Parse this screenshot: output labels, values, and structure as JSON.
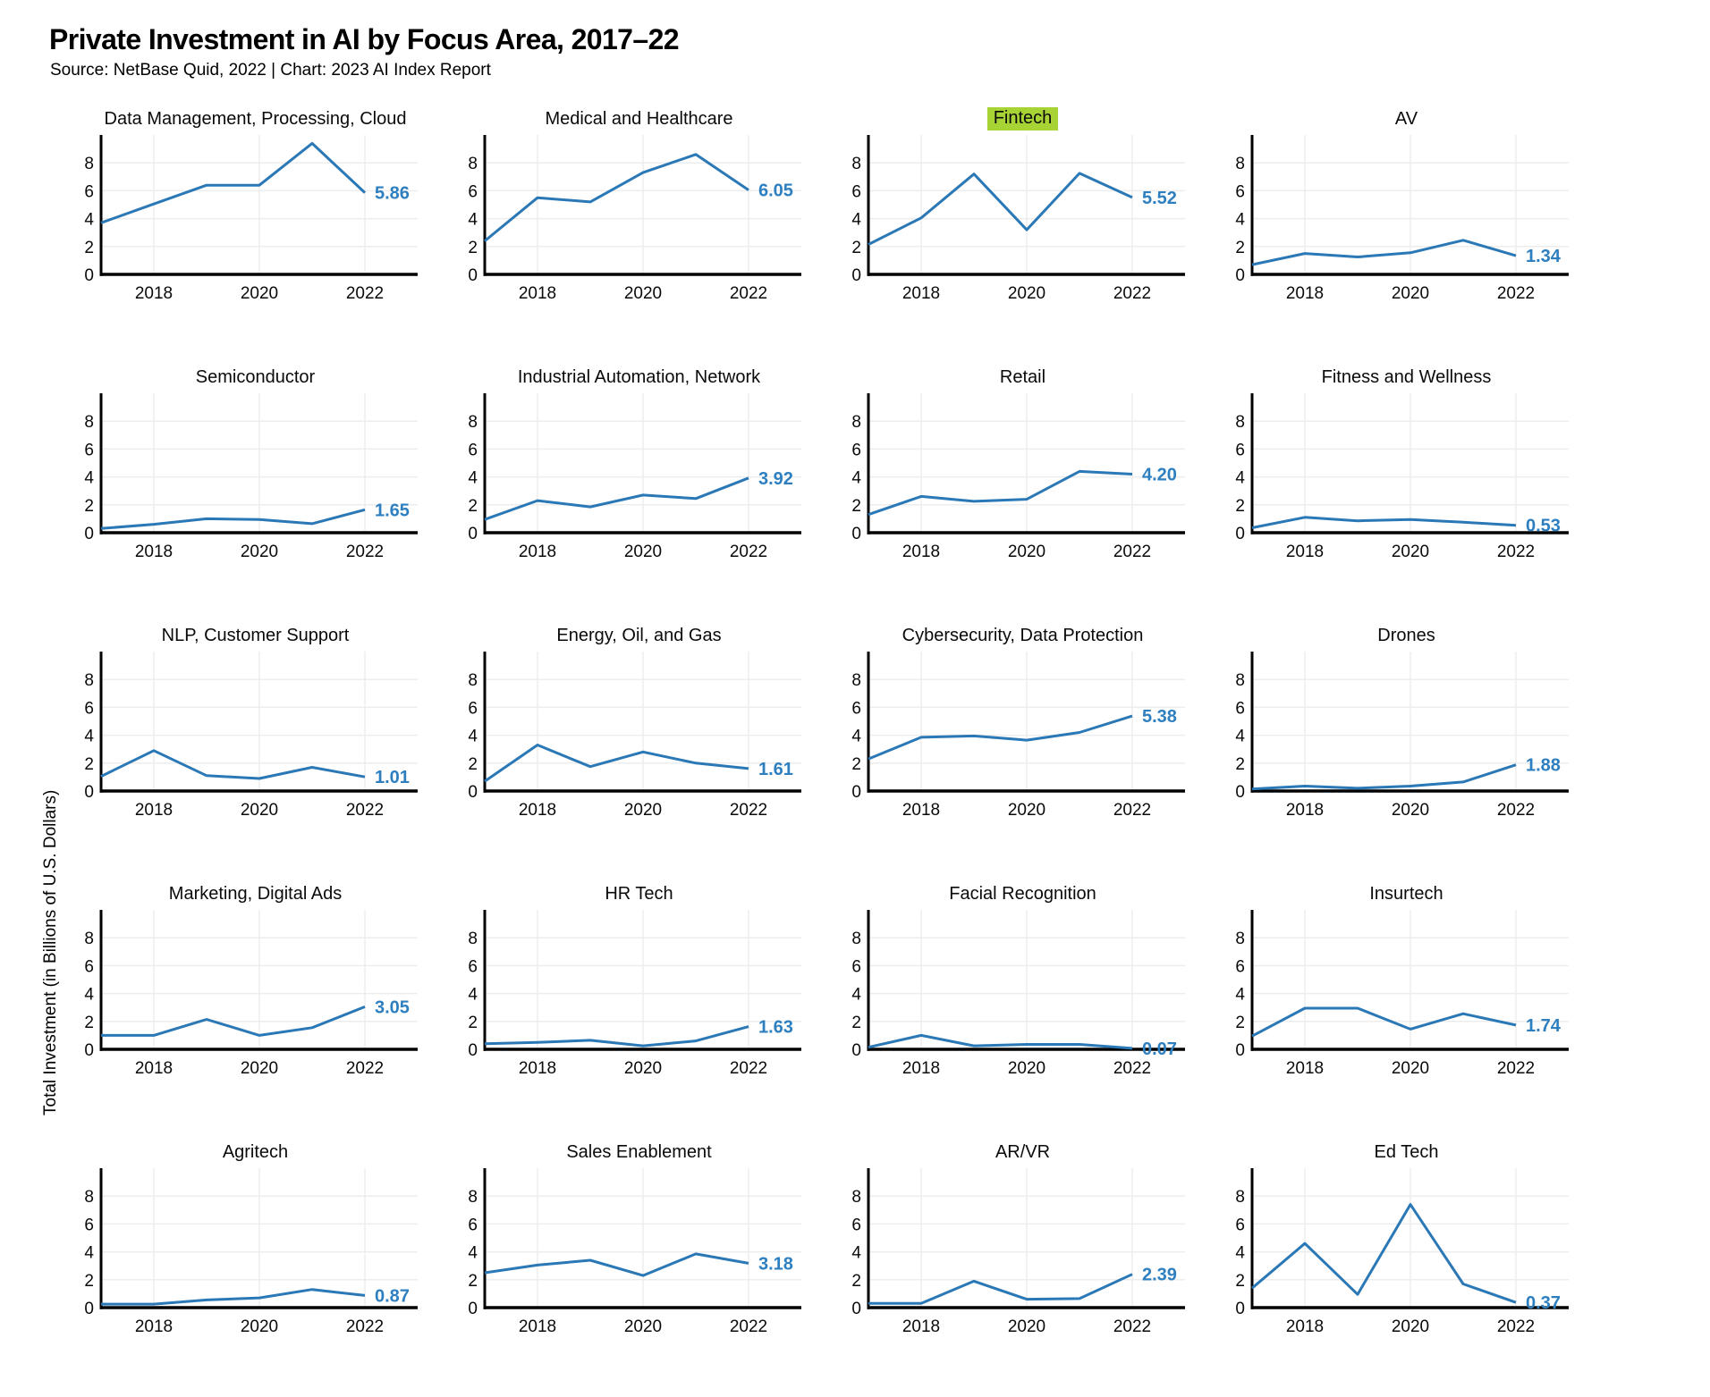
{
  "header": {
    "title": "Private Investment in AI by Focus Area, 2017–22",
    "source": "Source: NetBase Quid, 2022 | Chart: 2023 AI Index Report"
  },
  "chart_data": {
    "type": "line",
    "x": [
      2017,
      2018,
      2019,
      2020,
      2021,
      2022
    ],
    "x_ticks": [
      "2018",
      "2020",
      "2022"
    ],
    "y_ticks": [
      0,
      2,
      4,
      6,
      8
    ],
    "ylim": [
      0,
      10
    ],
    "ylabel": "Total Investment (in Billions of U.S. Dollars)",
    "grid": true,
    "legend": "none",
    "line_color": "#2b78b6",
    "label_color": "#2e7fc0",
    "highlight_color": "#a8d334",
    "gridline_color": "#ededed",
    "axis_color": "#000000",
    "panels": [
      {
        "title": "Data Management, Processing, Cloud",
        "highlight": false,
        "values": [
          3.7,
          5.05,
          6.4,
          6.4,
          9.4,
          5.86
        ],
        "end_label": "5.86"
      },
      {
        "title": "Medical and Healthcare",
        "highlight": false,
        "values": [
          2.4,
          5.5,
          5.2,
          7.3,
          8.6,
          6.05
        ],
        "end_label": "6.05"
      },
      {
        "title": "Fintech",
        "highlight": true,
        "values": [
          2.15,
          4.05,
          7.2,
          3.2,
          7.25,
          5.52
        ],
        "end_label": "5.52"
      },
      {
        "title": "AV",
        "highlight": false,
        "values": [
          0.7,
          1.5,
          1.25,
          1.55,
          2.45,
          1.34
        ],
        "end_label": "1.34"
      },
      {
        "title": "Semiconductor",
        "highlight": false,
        "values": [
          0.3,
          0.6,
          1.0,
          0.95,
          0.65,
          1.65
        ],
        "end_label": "1.65"
      },
      {
        "title": "Industrial Automation, Network",
        "highlight": false,
        "values": [
          0.95,
          2.3,
          1.85,
          2.7,
          2.45,
          3.92
        ],
        "end_label": "3.92"
      },
      {
        "title": "Retail",
        "highlight": false,
        "values": [
          1.3,
          2.6,
          2.25,
          2.4,
          4.4,
          4.2
        ],
        "end_label": "4.20"
      },
      {
        "title": "Fitness and Wellness",
        "highlight": false,
        "values": [
          0.35,
          1.1,
          0.85,
          0.95,
          0.75,
          0.53
        ],
        "end_label": "0.53"
      },
      {
        "title": "NLP, Customer Support",
        "highlight": false,
        "values": [
          1.05,
          2.9,
          1.1,
          0.9,
          1.7,
          1.01
        ],
        "end_label": "1.01"
      },
      {
        "title": "Energy, Oil, and Gas",
        "highlight": false,
        "values": [
          0.7,
          3.3,
          1.75,
          2.8,
          2.0,
          1.61
        ],
        "end_label": "1.61"
      },
      {
        "title": "Cybersecurity, Data Protection",
        "highlight": false,
        "values": [
          2.3,
          3.85,
          3.95,
          3.65,
          4.2,
          5.38
        ],
        "end_label": "5.38"
      },
      {
        "title": "Drones",
        "highlight": false,
        "values": [
          0.15,
          0.35,
          0.2,
          0.35,
          0.65,
          1.88
        ],
        "end_label": "1.88"
      },
      {
        "title": "Marketing, Digital Ads",
        "highlight": false,
        "values": [
          1.0,
          1.0,
          2.15,
          1.0,
          1.55,
          3.05
        ],
        "end_label": "3.05"
      },
      {
        "title": "HR Tech",
        "highlight": false,
        "values": [
          0.4,
          0.5,
          0.65,
          0.25,
          0.6,
          1.63
        ],
        "end_label": "1.63"
      },
      {
        "title": "Facial Recognition",
        "highlight": false,
        "values": [
          0.15,
          1.0,
          0.25,
          0.35,
          0.35,
          0.07
        ],
        "end_label": "0.07"
      },
      {
        "title": "Insurtech",
        "highlight": false,
        "values": [
          0.95,
          2.95,
          2.95,
          1.45,
          2.55,
          1.74
        ],
        "end_label": "1.74"
      },
      {
        "title": "Agritech",
        "highlight": false,
        "values": [
          0.25,
          0.25,
          0.55,
          0.7,
          1.3,
          0.87
        ],
        "end_label": "0.87"
      },
      {
        "title": "Sales Enablement",
        "highlight": false,
        "values": [
          2.5,
          3.05,
          3.4,
          2.3,
          3.85,
          3.18
        ],
        "end_label": "3.18"
      },
      {
        "title": "AR/VR",
        "highlight": false,
        "values": [
          0.3,
          0.3,
          1.9,
          0.6,
          0.65,
          2.39
        ],
        "end_label": "2.39"
      },
      {
        "title": "Ed Tech",
        "highlight": false,
        "values": [
          1.4,
          4.6,
          0.95,
          7.4,
          1.7,
          0.37
        ],
        "end_label": "0.37"
      }
    ]
  }
}
